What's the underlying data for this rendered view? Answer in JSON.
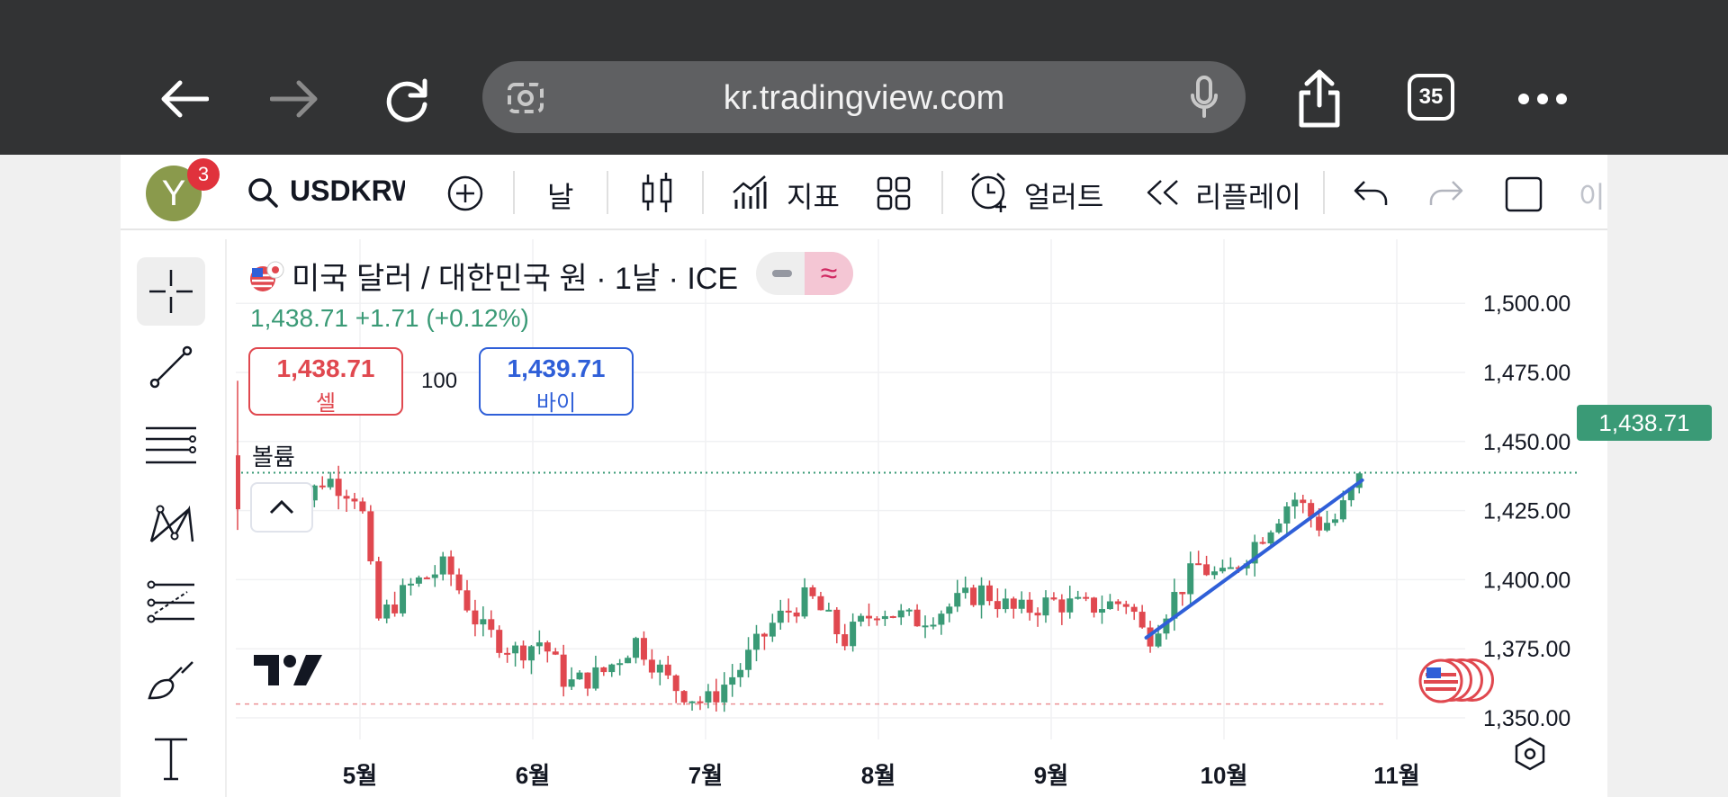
{
  "browser": {
    "url": "kr.tradingview.com",
    "tab_count": "35"
  },
  "toolbar": {
    "avatar_letter": "Y",
    "notifications": "3",
    "symbol": "USDKRW",
    "interval": "날",
    "indicators_label": "지표",
    "alerts_label": "얼러트",
    "replay_label": "리플레이",
    "trailing_text": "이"
  },
  "chart": {
    "title": "미국 달러 / 대한민국 원 · 1날 · ICE",
    "price_info": "1,438.71  +1.71 (+0.12%)",
    "sell_price": "1,438.71",
    "sell_label": "셀",
    "lot_size": "100",
    "buy_price": "1,439.71",
    "buy_label": "바이",
    "volume_label": "볼륨",
    "current_price_tag": "1,438.71",
    "colors": {
      "up": "#3a9a76",
      "down": "#e0484f",
      "trendline": "#2f5fd8"
    }
  },
  "chart_data": {
    "type": "candlestick",
    "y_ticks": [
      "1,500.00",
      "1,475.00",
      "1,450.00",
      "1,425.00",
      "1,400.00",
      "1,375.00",
      "1,350.00"
    ],
    "x_ticks": [
      "5월",
      "6월",
      "7월",
      "8월",
      "9월",
      "10월",
      "11월"
    ],
    "ylim": [
      1338,
      1505
    ],
    "last_price": 1438.71,
    "support_level": 1355,
    "trendline": {
      "from_month": 9.55,
      "from_value": 1379,
      "to_month": 10.8,
      "to_value": 1436
    },
    "anchors": [
      {
        "m": 4.55,
        "v": 1420
      },
      {
        "m": 4.8,
        "v": 1437
      },
      {
        "m": 5.0,
        "v": 1430
      },
      {
        "m": 5.1,
        "v": 1385
      },
      {
        "m": 5.3,
        "v": 1398
      },
      {
        "m": 5.5,
        "v": 1405
      },
      {
        "m": 5.7,
        "v": 1382
      },
      {
        "m": 5.9,
        "v": 1374
      },
      {
        "m": 6.05,
        "v": 1378
      },
      {
        "m": 6.2,
        "v": 1362
      },
      {
        "m": 6.4,
        "v": 1366
      },
      {
        "m": 6.6,
        "v": 1378
      },
      {
        "m": 6.8,
        "v": 1362
      },
      {
        "m": 7.0,
        "v": 1355
      },
      {
        "m": 7.2,
        "v": 1368
      },
      {
        "m": 7.4,
        "v": 1385
      },
      {
        "m": 7.6,
        "v": 1394
      },
      {
        "m": 7.8,
        "v": 1378
      },
      {
        "m": 8.0,
        "v": 1390
      },
      {
        "m": 8.2,
        "v": 1385
      },
      {
        "m": 8.4,
        "v": 1390
      },
      {
        "m": 8.6,
        "v": 1396
      },
      {
        "m": 8.8,
        "v": 1388
      },
      {
        "m": 9.0,
        "v": 1392
      },
      {
        "m": 9.2,
        "v": 1390
      },
      {
        "m": 9.45,
        "v": 1392
      },
      {
        "m": 9.55,
        "v": 1378
      },
      {
        "m": 9.7,
        "v": 1393
      },
      {
        "m": 9.85,
        "v": 1405
      },
      {
        "m": 10.0,
        "v": 1400
      },
      {
        "m": 10.2,
        "v": 1415
      },
      {
        "m": 10.4,
        "v": 1430
      },
      {
        "m": 10.55,
        "v": 1420
      },
      {
        "m": 10.65,
        "v": 1422
      },
      {
        "m": 10.8,
        "v": 1438
      }
    ]
  }
}
